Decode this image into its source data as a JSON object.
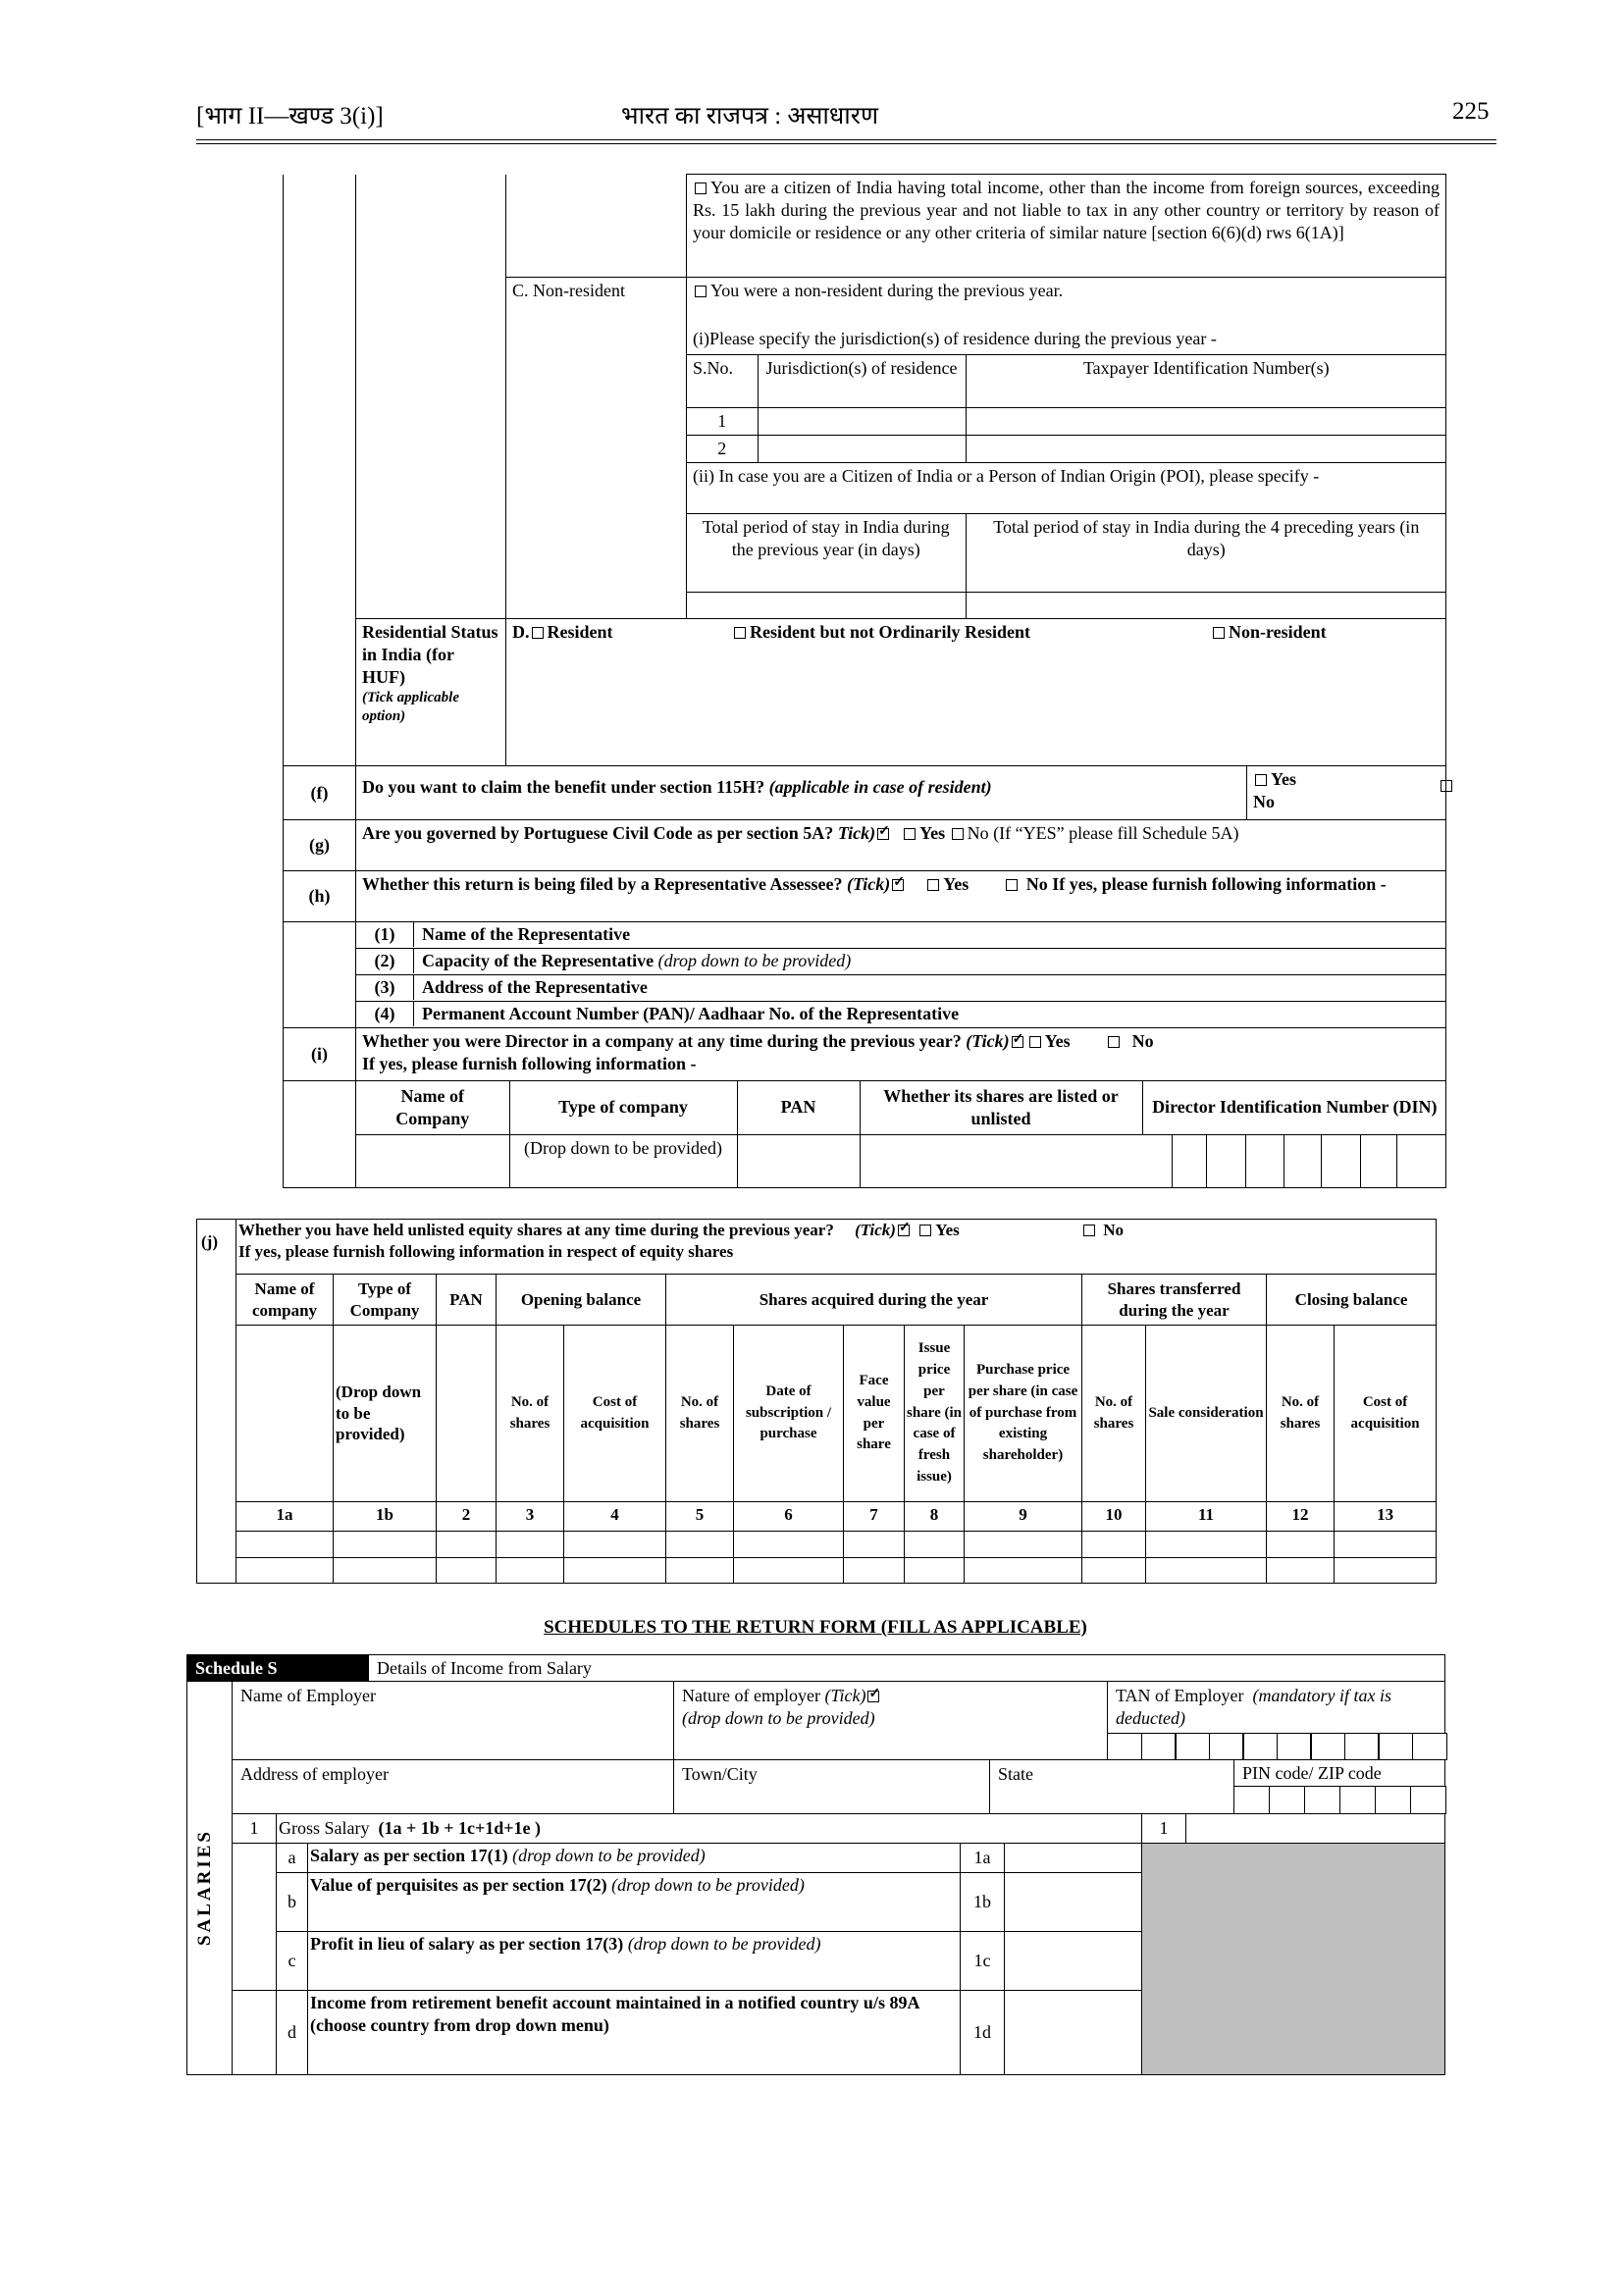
{
  "header": {
    "left": "[भाग II—खण्ड 3(i)]",
    "center": "भारत का राजपत्र : असाधारण",
    "page": "225"
  },
  "residency": {
    "citizen_text": "You are a citizen of India having total income, other than the income from foreign sources, exceeding Rs. 15 lakh during the previous year and not liable to tax in any other country or territory by reason of your domicile or residence or any other criteria of similar nature [section 6(6)(d) rws 6(1A)]",
    "non_resident_label": "C. Non-resident",
    "non_resident_text": "You were a non-resident during the previous year.",
    "jurisdiction_prompt": "(i)Please specify the jurisdiction(s) of residence during the previous year -",
    "jurisdiction_headers": [
      "S.No.",
      "Jurisdiction(s) of residence",
      "Taxpayer Identification Number(s)"
    ],
    "jurisdiction_rows": [
      "1",
      "2"
    ],
    "poi_prompt": "(ii) In case you are a Citizen of India or a Person of Indian Origin (POI), please specify -",
    "stay_headers": [
      "Total period of stay in India during the previous year (in days)",
      "Total period of stay in India during the 4 preceding years (in days)"
    ],
    "huf_label": "Residential Status in India (for HUF)",
    "huf_note": "(Tick applicable option)",
    "huf_prefix": "D.",
    "huf_options": [
      "Resident",
      "Resident but not Ordinarily Resident",
      "Non-resident"
    ]
  },
  "questions": {
    "f": {
      "num": "(f)",
      "text": "Do you want to claim the benefit under section 115H?",
      "note": "(applicable in case of resident)",
      "yes": "Yes",
      "no": "No"
    },
    "g": {
      "num": "(g)",
      "text": "Are you governed by Portuguese Civil Code as per section 5A?",
      "tick": "Tick)",
      "yes": "Yes",
      "no": "No (If “YES” please fill Schedule 5A)"
    },
    "h": {
      "num": "(h)",
      "text": "Whether this return is being filed by a Representative Assessee?",
      "tick": "(Tick)",
      "yes": "Yes",
      "no": "No If yes, please furnish following information -"
    },
    "rep_items": [
      {
        "num": "(1)",
        "label": "Name of the Representative"
      },
      {
        "num": "(2)",
        "label": "Capacity of the Representative",
        "note": "(drop down to be provided)"
      },
      {
        "num": "(3)",
        "label": "Address of the Representative"
      },
      {
        "num": "(4)",
        "label": "Permanent Account Number (PAN)/ Aadhaar No. of the Representative"
      }
    ],
    "i": {
      "num": "(i)",
      "text": "Whether you were Director in a company at any time during the previous year?",
      "tick": "(Tick)",
      "yes": "Yes",
      "no": "No",
      "followup": "If yes, please furnish following information -"
    },
    "director_headers": [
      "Name of Company",
      "Type of company",
      "PAN",
      "Whether its shares are listed or unlisted",
      "Director Identification Number (DIN)"
    ],
    "director_type_note": "(Drop down to be provided)"
  },
  "equity": {
    "num": "(j)",
    "text": "Whether you have held unlisted equity shares at any time during the previous year?",
    "tick": "(Tick)",
    "yes": "Yes",
    "no": "No",
    "followup": "If yes, please furnish following information in respect of equity shares",
    "headers": [
      "Name of company",
      "Type of Company",
      "PAN",
      "Opening balance",
      "Shares acquired during the year",
      "Shares transferred during the year",
      "Closing balance"
    ],
    "type_note": "(Drop down to be provided)",
    "sub_headers": [
      "No. of shares",
      "Cost of acquisition",
      "No. of shares",
      "Date of subscription / purchase",
      "Face value per share",
      "Issue price per share (in case of fresh issue)",
      "Purchase price per share (in case of purchase from existing shareholder)",
      "No. of shares",
      "Sale consideration",
      "No. of shares",
      "Cost of acquisition"
    ],
    "column_numbers": [
      "1a",
      "1b",
      "2",
      "3",
      "4",
      "5",
      "6",
      "7",
      "8",
      "9",
      "10",
      "11",
      "12",
      "13"
    ]
  },
  "schedules_title": "SCHEDULES TO THE RETURN FORM (FILL AS APPLICABLE)",
  "schedule_s": {
    "tag": "Schedule S",
    "title": "Details of Income from Salary",
    "side_label": "SALARIES",
    "employer_name": "Name of Employer",
    "nature": "Nature of employer",
    "nature_tick": "(Tick)",
    "nature_note": "(drop down to be provided)",
    "tan": "TAN of Employer",
    "tan_note": "(mandatory if tax is deducted)",
    "address": "Address of employer",
    "town": "Town/City",
    "state": "State",
    "pin": "PIN code/ ZIP code",
    "gross": {
      "num": "1",
      "label": "Gross Salary",
      "formula": "(1a + 1b + 1c+1d+1e )",
      "code": "1"
    },
    "items": [
      {
        "letter": "a",
        "label": "Salary as per section 17(1)",
        "note": "(drop down to be provided)",
        "code": "1a"
      },
      {
        "letter": "b",
        "label": "Value of perquisites as per section 17(2)",
        "note": "(drop down to be provided)",
        "code": "1b"
      },
      {
        "letter": "c",
        "label": "Profit in lieu of salary as per section 17(3)",
        "note": "(drop down to be provided)",
        "code": "1c"
      },
      {
        "letter": "d",
        "label": "Income from retirement benefit account maintained in a notified country u/s 89A (choose country from drop down menu)",
        "code": "1d"
      }
    ]
  }
}
